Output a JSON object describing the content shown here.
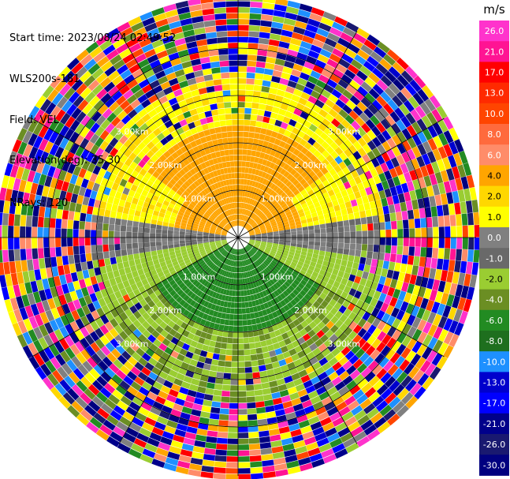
{
  "header": {
    "start_time": "Start time: 2023/08/24 02:49:52",
    "instrument": "WLS200s-181",
    "field": "Field: VEL",
    "elevation": "Elevation(deg): 35.30",
    "nrays": "NRays: 120"
  },
  "chart_data": {
    "type": "heatmap",
    "projection": "polar PPI",
    "field": "VEL",
    "units_label": "m/s",
    "colorbar": {
      "ticks": [
        "26.0",
        "21.0",
        "17.0",
        "13.0",
        "10.0",
        "8.0",
        "6.0",
        "4.0",
        "2.0",
        "1.0",
        "0.0",
        "-1.0",
        "-2.0",
        "-4.0",
        "-6.0",
        "-8.0",
        "-10.0",
        "-13.0",
        "-17.0",
        "-21.0",
        "-26.0",
        "-30.0"
      ],
      "colors": [
        "#ff33cc",
        "#ff1493",
        "#ff0000",
        "#ff2a00",
        "#ff4500",
        "#ff6a3d",
        "#ff8c69",
        "#ffa500",
        "#ffd700",
        "#ffff00",
        "#808080",
        "#696969",
        "#9acd32",
        "#6b8e23",
        "#228b22",
        "#1e6f1e",
        "#1e90ff",
        "#0000cd",
        "#0000ff",
        "#00008b",
        "#191970",
        "#000080"
      ]
    },
    "range_rings": [
      {
        "label": "1.00km"
      },
      {
        "label": "2.00km"
      },
      {
        "label": "3.00km"
      }
    ],
    "n_rays": 120,
    "spokes_deg": [
      0,
      30,
      60,
      90,
      120,
      150,
      180,
      210,
      240,
      270,
      300,
      330
    ],
    "description_regions": {
      "north_inner": "positive velocities (yellow/orange)",
      "south_inner": "negative velocities (green)",
      "outer": "noise (random colors)"
    }
  }
}
